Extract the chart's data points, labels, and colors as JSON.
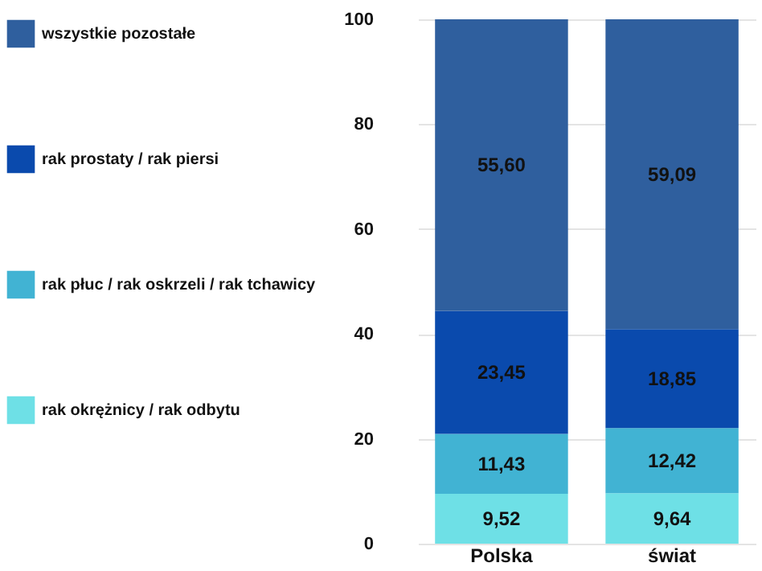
{
  "chart_data": {
    "type": "bar",
    "stacked": true,
    "categories": [
      "Polska",
      "świat"
    ],
    "series": [
      {
        "name": "rak okrężnicy / rak odbytu",
        "color": "#6ee0e6",
        "values": [
          9.52,
          9.64
        ],
        "value_labels": [
          "9,52",
          "9,64"
        ]
      },
      {
        "name": "rak płuc / rak oskrzeli / rak tchawicy",
        "color": "#41b3d3",
        "values": [
          11.43,
          12.42
        ],
        "value_labels": [
          "11,43",
          "12,42"
        ]
      },
      {
        "name": "rak prostaty / rak piersi",
        "color": "#0a4aad",
        "values": [
          23.45,
          18.85
        ],
        "value_labels": [
          "23,45",
          "18,85"
        ]
      },
      {
        "name": "wszystkie pozostałe",
        "color": "#2f5f9e",
        "values": [
          55.6,
          59.09
        ],
        "value_labels": [
          "55,60",
          "59,09"
        ]
      }
    ],
    "ylim": [
      0,
      100
    ],
    "yticks": [
      0,
      20,
      40,
      60,
      80,
      100
    ],
    "grid": "y",
    "legend": "left"
  }
}
